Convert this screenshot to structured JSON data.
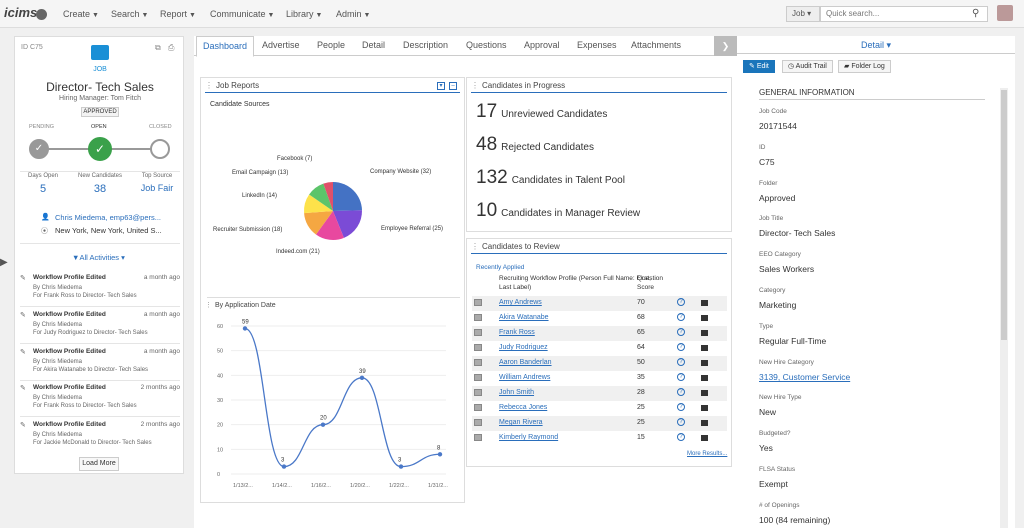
{
  "topnav": {
    "logo": "icims",
    "items": [
      "Create",
      "Search",
      "Report",
      "Communicate",
      "Library",
      "Admin"
    ],
    "job_select": "Job",
    "search_placeholder": "Quick search..."
  },
  "left": {
    "id": "ID C75",
    "type": "JOB",
    "title": "Director- Tech Sales",
    "manager": "Hiring Manager: Tom Fitch",
    "badge": "APPROVED",
    "stages": [
      "PENDING",
      "OPEN",
      "CLOSED"
    ],
    "stats": [
      {
        "label": "Days Open",
        "value": "5"
      },
      {
        "label": "New Candidates",
        "value": "38"
      },
      {
        "label": "Top Source",
        "value": "Job Fair"
      }
    ],
    "contact": "Chris Miedema, emp63@pers...",
    "location": "New York, New York, United S...",
    "activities_label": "All Activities",
    "activities": [
      {
        "title": "Workflow Profile Edited",
        "when": "a month ago",
        "by": "By Chris Miedema",
        "for": "For Frank Ross to Director- Tech Sales"
      },
      {
        "title": "Workflow Profile Edited",
        "when": "a month ago",
        "by": "By Chris Miedema",
        "for": "For Judy Rodriguez to Director- Tech Sales"
      },
      {
        "title": "Workflow Profile Edited",
        "when": "a month ago",
        "by": "By Chris Miedema",
        "for": "For Akira Watanabe to Director- Tech Sales"
      },
      {
        "title": "Workflow Profile Edited",
        "when": "2 months ago",
        "by": "By Chris Miedema",
        "for": "For Frank Ross to Director- Tech Sales"
      },
      {
        "title": "Workflow Profile Edited",
        "when": "2 months ago",
        "by": "By Chris Miedema",
        "for": "For Jackie McDonald to Director- Tech Sales"
      }
    ],
    "load_more": "Load More"
  },
  "tabs": [
    "Dashboard",
    "Advertise",
    "People",
    "Detail",
    "Description",
    "Questions",
    "Approval",
    "Expenses",
    "Attachments"
  ],
  "job_reports": {
    "title": "Job Reports",
    "sources_title": "Candidate Sources",
    "app_date_title": "By Application Date"
  },
  "chart_data": [
    {
      "type": "pie",
      "title": "Candidate Sources",
      "categories": [
        "Company Website",
        "Employee Referral",
        "Indeed.com",
        "Recruiter Submission",
        "LinkedIn",
        "Email Campaign",
        "Facebook"
      ],
      "values": [
        32,
        25,
        21,
        18,
        14,
        13,
        7
      ],
      "colors": [
        "#4472c4",
        "#7b4bd6",
        "#e8489f",
        "#f5a742",
        "#fde24a",
        "#5cc46a",
        "#e0506a"
      ],
      "labels": [
        "Company Website (32)",
        "Employee Referral (25)",
        "Indeed.com (21)",
        "Recruiter Submission (18)",
        "LinkedIn (14)",
        "Email Campaign (13)",
        "Facebook (7)"
      ]
    },
    {
      "type": "line",
      "title": "By Application Date",
      "x": [
        "1/13/2...",
        "1/14/2...",
        "1/16/2...",
        "1/20/2...",
        "1/22/2...",
        "1/31/2..."
      ],
      "values": [
        59,
        3,
        20,
        39,
        3,
        8
      ],
      "ylim": [
        0,
        60
      ],
      "yticks": [
        0,
        10,
        20,
        30,
        40,
        50,
        60
      ]
    }
  ],
  "progress": {
    "title": "Candidates in Progress",
    "items": [
      {
        "num": "17",
        "label": "Unreviewed Candidates"
      },
      {
        "num": "48",
        "label": "Rejected Candidates"
      },
      {
        "num": "132",
        "label": "Candidates in Talent Pool"
      },
      {
        "num": "10",
        "label": "Candidates in Manager Review"
      }
    ]
  },
  "review": {
    "title": "Candidates to Review",
    "subtitle": "Recently Applied",
    "col_profile": "Recruiting Workflow Profile (Person Full Name: First, Last Label)",
    "col_score": "Question Score",
    "more": "More Results...",
    "rows": [
      {
        "name": "Amy Andrews",
        "score": "70"
      },
      {
        "name": "Akira Watanabe",
        "score": "68"
      },
      {
        "name": "Frank Ross",
        "score": "65"
      },
      {
        "name": "Judy Rodriguez",
        "score": "64"
      },
      {
        "name": "Aaron Banderlan",
        "score": "50"
      },
      {
        "name": "William Andrews",
        "score": "35"
      },
      {
        "name": "John Smith",
        "score": "28"
      },
      {
        "name": "Rebecca Jones",
        "score": "25"
      },
      {
        "name": "Megan Rivera",
        "score": "25"
      },
      {
        "name": "Kimberly Raymond",
        "score": "15"
      }
    ]
  },
  "right": {
    "header": "Detail",
    "buttons": [
      "Edit",
      "Audit Trail",
      "Folder Log"
    ],
    "section": "GENERAL INFORMATION",
    "fields": [
      {
        "label": "Job Code",
        "value": "20171544"
      },
      {
        "label": "ID",
        "value": "C75"
      },
      {
        "label": "Folder",
        "value": "Approved"
      },
      {
        "label": "Job Title",
        "value": "Director- Tech Sales"
      },
      {
        "label": "EEO Category",
        "value": "Sales Workers"
      },
      {
        "label": "Category",
        "value": "Marketing"
      },
      {
        "label": "Type",
        "value": "Regular Full-Time"
      },
      {
        "label": "New Hire Category",
        "value": "3139, Customer Service"
      },
      {
        "label": "New Hire Type",
        "value": "New"
      },
      {
        "label": "Budgeted?",
        "value": "Yes"
      },
      {
        "label": "FLSA Status",
        "value": "Exempt"
      },
      {
        "label": "# of Openings",
        "value": "100 (84 remaining)"
      }
    ]
  }
}
